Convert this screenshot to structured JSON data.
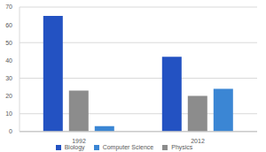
{
  "chart_data": {
    "type": "bar",
    "categories": [
      "1992",
      "2012"
    ],
    "series": [
      {
        "name": "Biology",
        "color": "#2352c2",
        "values": [
          65,
          42
        ]
      },
      {
        "name": "Physics",
        "color": "#8c8c8c",
        "values": [
          23,
          20
        ]
      },
      {
        "name": "Computer Science",
        "color": "#3b86d4",
        "values": [
          3,
          24
        ]
      }
    ],
    "ylim": [
      0,
      70
    ],
    "yticks": [
      0,
      10,
      20,
      30,
      40,
      50,
      60,
      70
    ],
    "grid": true,
    "legend": "bottom"
  }
}
